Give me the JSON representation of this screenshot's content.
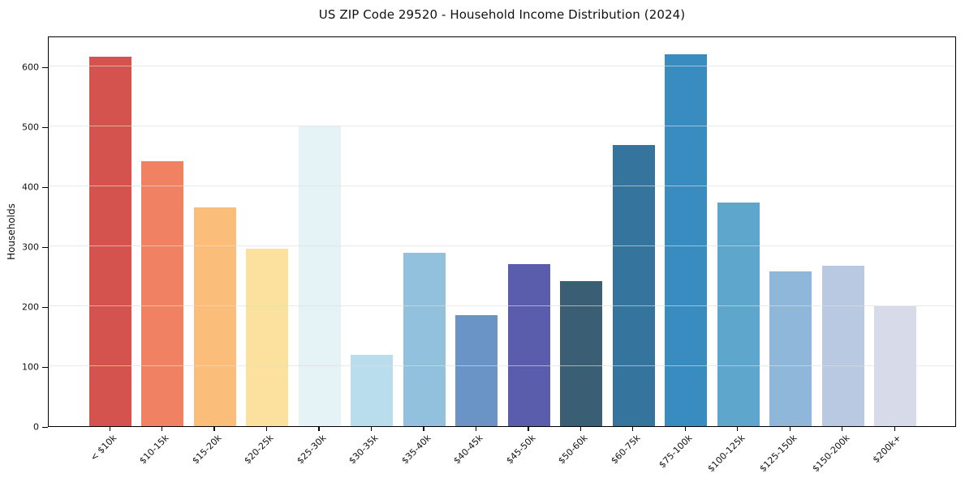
{
  "chart_data": {
    "type": "bar",
    "title": "US ZIP Code 29520 - Household Income Distribution (2024)",
    "xlabel": "",
    "ylabel": "Households",
    "categories": [
      "< $10k",
      "$10-15k",
      "$15-20k",
      "$20-25k",
      "$25-30k",
      "$30-35k",
      "$35-40k",
      "$40-45k",
      "$45-50k",
      "$50-60k",
      "$60-75k",
      "$75-100k",
      "$100-125k",
      "$125-150k",
      "$150-200k",
      "$200k+"
    ],
    "values": [
      617,
      442,
      365,
      296,
      500,
      119,
      289,
      186,
      270,
      242,
      469,
      621,
      374,
      258,
      268,
      200
    ],
    "bar_colors": [
      "#d4534e",
      "#f08263",
      "#fabd7a",
      "#fbe19d",
      "#e5f2f6",
      "#b9ddec",
      "#92c1de",
      "#6b94c6",
      "#5a5dab",
      "#3a5f75",
      "#35749c",
      "#398cbf",
      "#5ea6cc",
      "#8fb7d9",
      "#b9c9e1",
      "#d7dae8"
    ],
    "ylim": [
      0,
      652
    ],
    "yticks": [
      0,
      100,
      200,
      300,
      400,
      500,
      600
    ],
    "grid": true,
    "grid_on_top_of_bars": true,
    "grid_color": "#e5e5e5",
    "axis_color": "#000000",
    "background_color": "#ffffff",
    "legend_position": "none",
    "x_tick_rotation_deg": 45
  }
}
